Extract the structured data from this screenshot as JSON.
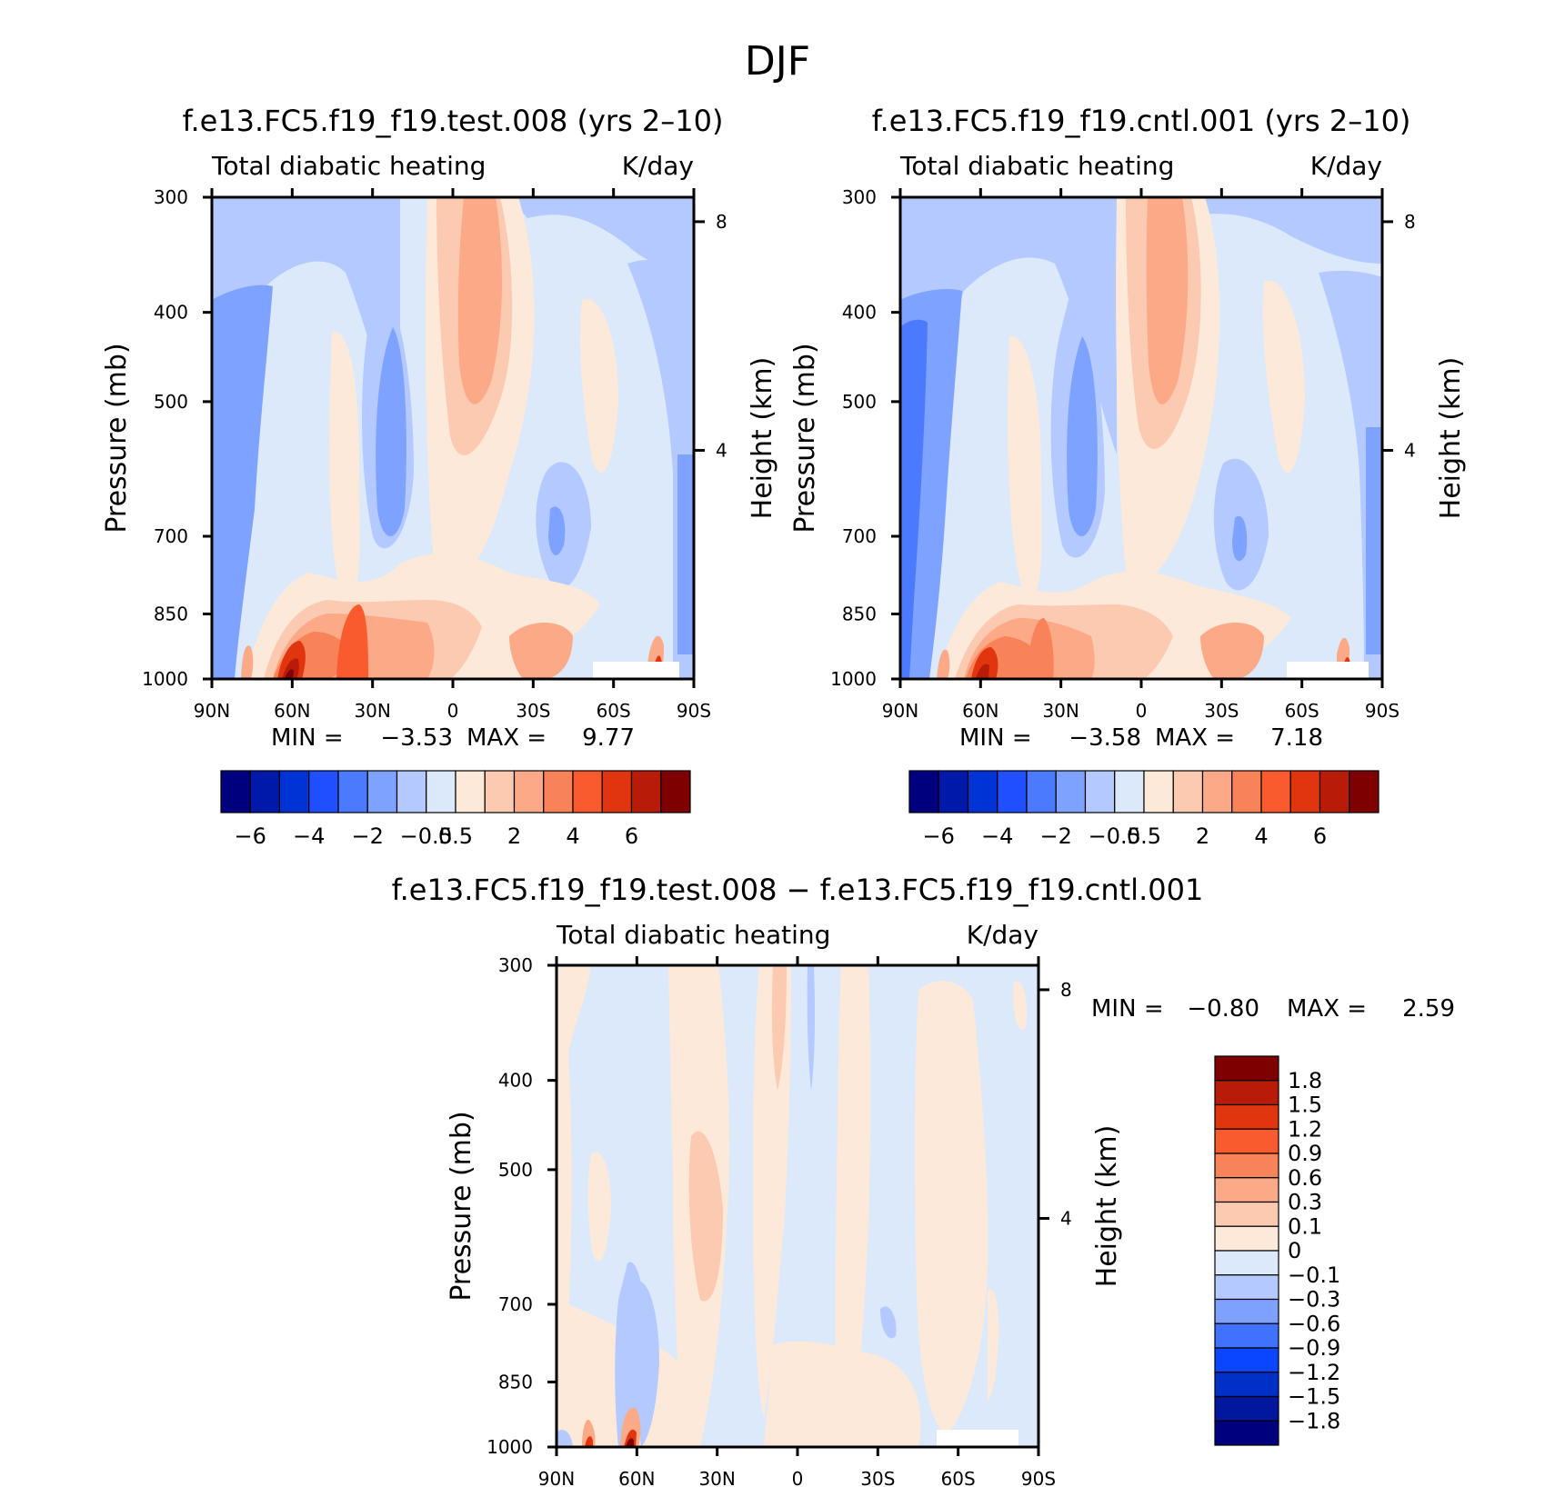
{
  "figure": {
    "title": "DJF"
  },
  "colors": {
    "abs_scale": [
      "#00007f",
      "#0019a8",
      "#0033d6",
      "#1f4fff",
      "#4c7aff",
      "#7da2ff",
      "#b3c9ff",
      "#dce9fb",
      "#fde9d9",
      "#fccab0",
      "#fba987",
      "#f98358",
      "#f95b2e",
      "#e0350e",
      "#b81c08",
      "#7f0000"
    ],
    "diff_scale": [
      "#00007f",
      "#00179e",
      "#0030c7",
      "#0a45ff",
      "#4172ff",
      "#7ea1ff",
      "#b3c9ff",
      "#dce9fb",
      "#fde9d9",
      "#fccab0",
      "#fba987",
      "#f98358",
      "#f95b2e",
      "#e0350e",
      "#b81c08",
      "#7f0000"
    ]
  },
  "chart_data": [
    {
      "type": "heatmap",
      "title": "f.e13.FC5.f19_f19.test.008 (yrs 2–10)",
      "subtitle_left": "Total diabatic heating",
      "subtitle_right": "K/day",
      "xlabel": "",
      "ylabel": "Pressure (mb)",
      "ylabel_right": "Height (km)",
      "x_ticks": [
        "90N",
        "60N",
        "30N",
        "0",
        "30S",
        "60S",
        "90S"
      ],
      "y_ticks": [
        "300",
        "400",
        "500",
        "700",
        "850",
        "1000"
      ],
      "y_right_ticks": [
        "8",
        "4"
      ],
      "stats": {
        "min_label": "MIN =",
        "min": "−3.53",
        "max_label": "MAX =",
        "max": "9.77"
      },
      "colorbar_labels": [
        "−6",
        "−4",
        "−2",
        "−0.5",
        "0.5",
        "2",
        "4",
        "6"
      ]
    },
    {
      "type": "heatmap",
      "title": "f.e13.FC5.f19_f19.cntl.001 (yrs 2–10)",
      "subtitle_left": "Total diabatic heating",
      "subtitle_right": "K/day",
      "xlabel": "",
      "ylabel": "Pressure (mb)",
      "ylabel_right": "Height (km)",
      "x_ticks": [
        "90N",
        "60N",
        "30N",
        "0",
        "30S",
        "60S",
        "90S"
      ],
      "y_ticks": [
        "300",
        "400",
        "500",
        "700",
        "850",
        "1000"
      ],
      "y_right_ticks": [
        "8",
        "4"
      ],
      "stats": {
        "min_label": "MIN =",
        "min": "−3.58",
        "max_label": "MAX =",
        "max": "7.18"
      },
      "colorbar_labels": [
        "−6",
        "−4",
        "−2",
        "−0.5",
        "0.5",
        "2",
        "4",
        "6"
      ]
    },
    {
      "type": "heatmap",
      "title": "f.e13.FC5.f19_f19.test.008 − f.e13.FC5.f19_f19.cntl.001",
      "subtitle_left": "Total diabatic heating",
      "subtitle_right": "K/day",
      "xlabel": "",
      "ylabel": "Pressure (mb)",
      "ylabel_right": "Height (km)",
      "x_ticks": [
        "90N",
        "60N",
        "30N",
        "0",
        "30S",
        "60S",
        "90S"
      ],
      "y_ticks": [
        "300",
        "400",
        "500",
        "700",
        "850",
        "1000"
      ],
      "y_right_ticks": [
        "8",
        "4"
      ],
      "stats": {
        "min_label": "MIN =",
        "min": "−0.80",
        "max_label": "MAX =",
        "max": "2.59"
      },
      "colorbar_labels": [
        "1.8",
        "1.5",
        "1.2",
        "0.9",
        "0.6",
        "0.3",
        "0.1",
        "0",
        "−0.1",
        "−0.3",
        "−0.6",
        "−0.9",
        "−1.2",
        "−1.5",
        "−1.8"
      ]
    }
  ]
}
